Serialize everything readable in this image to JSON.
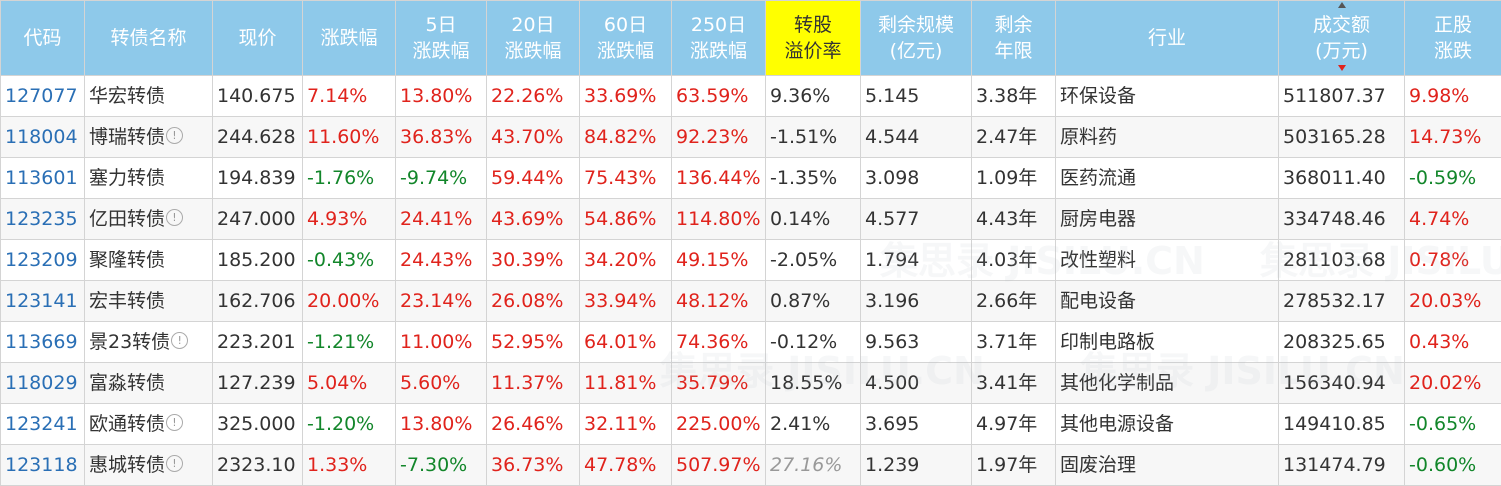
{
  "columns": [
    {
      "key": "code",
      "label": "代码"
    },
    {
      "key": "name",
      "label": "转债名称"
    },
    {
      "key": "price",
      "label": "现价"
    },
    {
      "key": "change",
      "label": "涨跌幅"
    },
    {
      "key": "change5",
      "label": "5日涨跌幅",
      "l1": "5日",
      "l2": "涨跌幅"
    },
    {
      "key": "change20",
      "label": "20日涨跌幅",
      "l1": "20日",
      "l2": "涨跌幅"
    },
    {
      "key": "change60",
      "label": "60日涨跌幅",
      "l1": "60日",
      "l2": "涨跌幅"
    },
    {
      "key": "change250",
      "label": "250日涨跌幅",
      "l1": "250日",
      "l2": "涨跌幅"
    },
    {
      "key": "premium",
      "label": "转股溢价率",
      "l1": "转股",
      "l2": "溢价率"
    },
    {
      "key": "scale",
      "label": "剩余规模(亿元)",
      "l1": "剩余规模",
      "l2": "(亿元)"
    },
    {
      "key": "years",
      "label": "剩余年限",
      "l1": "剩余",
      "l2": "年限"
    },
    {
      "key": "industry",
      "label": "行业"
    },
    {
      "key": "volume",
      "label": "成交额(万元)",
      "l1": "成交额",
      "l2": "(万元)"
    },
    {
      "key": "stock_change",
      "label": "正股涨跌",
      "l1": "正股",
      "l2": "涨跌"
    }
  ],
  "colors": {
    "header_bg": "#8ec9ea",
    "highlight": "#ffff00",
    "up": "#e0231c",
    "down": "#12862a",
    "code": "#2a6fb5"
  },
  "watermark": "集思录 JISILU.CN",
  "icons": {
    "info": "info-circle-icon",
    "sort": "sort-arrow-icon"
  },
  "info_glyph": "!",
  "rows": [
    {
      "code": "127077",
      "name": "华宏转债",
      "info": false,
      "price": "140.675",
      "change": "7.14%",
      "change5": "13.80%",
      "change20": "22.26%",
      "change60": "33.69%",
      "change250": "63.59%",
      "premium": "9.36%",
      "scale": "5.145",
      "years": "3.38年",
      "industry": "环保设备",
      "volume": "511807.37",
      "stock_change": "9.98%"
    },
    {
      "code": "118004",
      "name": "博瑞转债",
      "info": true,
      "price": "244.628",
      "change": "11.60%",
      "change5": "36.83%",
      "change20": "43.70%",
      "change60": "84.82%",
      "change250": "92.23%",
      "premium": "-1.51%",
      "scale": "4.544",
      "years": "2.47年",
      "industry": "原料药",
      "volume": "503165.28",
      "stock_change": "14.73%"
    },
    {
      "code": "113601",
      "name": "塞力转债",
      "info": false,
      "price": "194.839",
      "change": "-1.76%",
      "change5": "-9.74%",
      "change20": "59.44%",
      "change60": "75.43%",
      "change250": "136.44%",
      "premium": "-1.35%",
      "scale": "3.098",
      "years": "1.09年",
      "industry": "医药流通",
      "volume": "368011.40",
      "stock_change": "-0.59%"
    },
    {
      "code": "123235",
      "name": "亿田转债",
      "info": true,
      "price": "247.000",
      "change": "4.93%",
      "change5": "24.41%",
      "change20": "43.69%",
      "change60": "54.86%",
      "change250": "114.80%",
      "premium": "0.14%",
      "scale": "4.577",
      "years": "4.43年",
      "industry": "厨房电器",
      "volume": "334748.46",
      "stock_change": "4.74%"
    },
    {
      "code": "123209",
      "name": "聚隆转债",
      "info": false,
      "price": "185.200",
      "change": "-0.43%",
      "change5": "24.43%",
      "change20": "30.39%",
      "change60": "34.20%",
      "change250": "49.15%",
      "premium": "-2.05%",
      "scale": "1.794",
      "years": "4.03年",
      "industry": "改性塑料",
      "volume": "281103.68",
      "stock_change": "0.78%"
    },
    {
      "code": "123141",
      "name": "宏丰转债",
      "info": false,
      "price": "162.706",
      "change": "20.00%",
      "change5": "23.14%",
      "change20": "26.08%",
      "change60": "33.94%",
      "change250": "48.12%",
      "premium": "0.87%",
      "scale": "3.196",
      "years": "2.66年",
      "industry": "配电设备",
      "volume": "278532.17",
      "stock_change": "20.03%"
    },
    {
      "code": "113669",
      "name": "景23转债",
      "info": true,
      "price": "223.201",
      "change": "-1.21%",
      "change5": "11.00%",
      "change20": "52.95%",
      "change60": "64.01%",
      "change250": "74.36%",
      "premium": "-0.12%",
      "scale": "9.563",
      "years": "3.71年",
      "industry": "印制电路板",
      "volume": "208325.65",
      "stock_change": "0.43%"
    },
    {
      "code": "118029",
      "name": "富淼转债",
      "info": false,
      "price": "127.239",
      "change": "5.04%",
      "change5": "5.60%",
      "change20": "11.37%",
      "change60": "11.81%",
      "change250": "35.79%",
      "premium": "18.55%",
      "scale": "4.500",
      "years": "3.41年",
      "industry": "其他化学制品",
      "volume": "156340.94",
      "stock_change": "20.02%"
    },
    {
      "code": "123241",
      "name": "欧通转债",
      "info": true,
      "price": "325.000",
      "change": "-1.20%",
      "change5": "13.80%",
      "change20": "26.46%",
      "change60": "32.11%",
      "change250": "225.00%",
      "premium": "2.41%",
      "scale": "3.695",
      "years": "4.97年",
      "industry": "其他电源设备",
      "volume": "149410.85",
      "stock_change": "-0.65%"
    },
    {
      "code": "123118",
      "name": "惠城转债",
      "info": true,
      "price": "2323.10",
      "change": "1.33%",
      "change5": "-7.30%",
      "change20": "36.73%",
      "change60": "47.78%",
      "change250": "507.97%",
      "premium": "27.16%",
      "premium_muted": true,
      "scale": "1.239",
      "years": "1.97年",
      "industry": "固废治理",
      "volume": "131474.79",
      "stock_change": "-0.60%"
    }
  ]
}
